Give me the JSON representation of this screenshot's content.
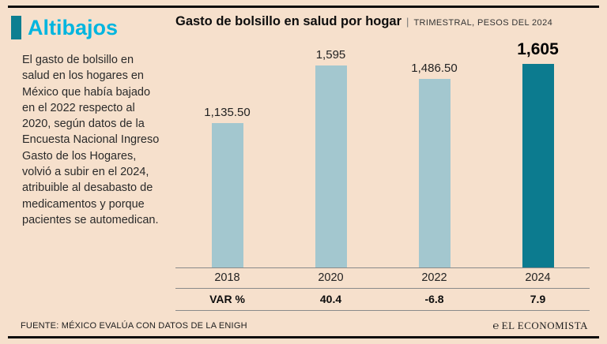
{
  "theme": {
    "background": "#f6e0cc",
    "kicker_color": "#00b5df",
    "accent_color": "#0d7f91",
    "bar_color": "#a3c7cf",
    "highlight_color": "#0c7b8f"
  },
  "left_panel": {
    "kicker": "Altibajos",
    "description": "El gasto de bolsillo en salud en los hogares en México que había bajado en el 2022 respecto al 2020, según datos de la Encuesta Nacional Ingreso Gasto de los Hogares, volvió a subir en el 2024, atribuible al desabasto de medicamentos y porque pacientes se automedican."
  },
  "chart": {
    "title": "Gasto de bolsillo en salud por hogar",
    "separator": "|",
    "subtitle": "TRIMESTRAL, PESOS DEL 2024"
  },
  "chart_data": {
    "type": "bar",
    "title": "Gasto de bolsillo en salud por hogar",
    "subtitle": "Trimestral, pesos del 2024",
    "categories": [
      "2018",
      "2020",
      "2022",
      "2024"
    ],
    "values": [
      1135.5,
      1595,
      1486.5,
      1605
    ],
    "value_labels": [
      "1,135.50",
      "1,595",
      "1,486.50",
      "1,605"
    ],
    "var_row": {
      "label": "VAR %",
      "values": [
        "40.4",
        "-6.8",
        "7.9"
      ]
    },
    "highlight_index": 3,
    "bar_color": "#a3c7cf",
    "highlight_color": "#0c7b8f",
    "ylim": [
      0,
      1605
    ],
    "grid": false,
    "legend": false
  },
  "footer": {
    "source": "FUENTE: MÉXICO EVALÚA CON DATOS DE LA ENIGH",
    "brand_mark": "℮",
    "brand": "EL ECONOMISTA"
  }
}
